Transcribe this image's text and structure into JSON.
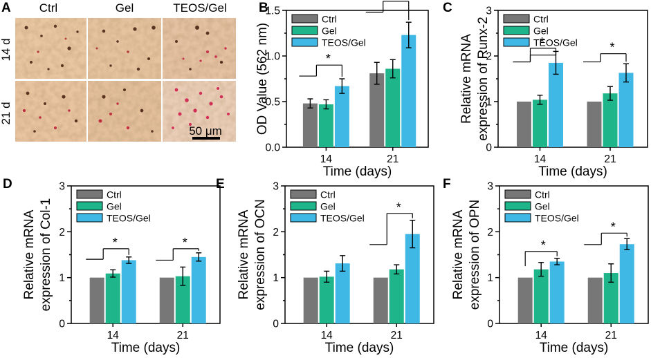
{
  "colors": {
    "Ctrl": "#777777",
    "Gel": "#1fb58b",
    "TEOS/Gel": "#3fb8e6"
  },
  "micrograph": {
    "panel_label": "A",
    "columns": [
      "Ctrl",
      "Gel",
      "TEOS/Gel"
    ],
    "rows": [
      "14 d",
      "21 d"
    ],
    "scale_bar": "50 μm"
  },
  "chart_data": [
    {
      "panel": "B",
      "type": "bar",
      "title": "",
      "categories": [
        "14",
        "21"
      ],
      "xlabel": "Time (days)",
      "ylabel": [
        "OD Value (562 nm)"
      ],
      "ylim": [
        0,
        1.5
      ],
      "yticks": [
        "0.0",
        "0.5",
        "1.0",
        "1.5"
      ],
      "minor_ticks": [
        0.25,
        0.75,
        1.25
      ],
      "series": [
        {
          "name": "Ctrl",
          "values": [
            0.48,
            0.81
          ],
          "errors": [
            0.05,
            0.12
          ]
        },
        {
          "name": "Gel",
          "values": [
            0.47,
            0.86
          ],
          "errors": [
            0.05,
            0.1
          ]
        },
        {
          "name": "TEOS/Gel",
          "values": [
            0.67,
            1.23
          ],
          "errors": [
            0.08,
            0.14
          ]
        }
      ],
      "legend": "top-left",
      "annotations": [
        {
          "type": "significance",
          "group": 0,
          "label": "*",
          "brackets": [
            {
              "y": 0.9,
              "leftLevel": 0.78
            }
          ],
          "centerLine": true
        },
        {
          "type": "significance",
          "group": 1,
          "label": "*",
          "brackets": [
            {
              "y": 1.6,
              "leftLevel": 1.48
            }
          ],
          "centerLine": true
        }
      ]
    },
    {
      "panel": "C",
      "type": "bar",
      "title": "",
      "categories": [
        "14",
        "21"
      ],
      "xlabel": "Time (days)",
      "ylabel": [
        "Relative mRNA",
        "expression of Runx-2"
      ],
      "ylim": [
        0,
        3
      ],
      "yticks": [
        "0",
        "1",
        "2",
        "3"
      ],
      "minor_ticks": [
        0.5,
        1.5,
        2.5
      ],
      "series": [
        {
          "name": "Ctrl",
          "values": [
            1.0,
            1.0
          ],
          "errors": [
            0,
            0
          ]
        },
        {
          "name": "Gel",
          "values": [
            1.04,
            1.18
          ],
          "errors": [
            0.1,
            0.15
          ]
        },
        {
          "name": "TEOS/Gel",
          "values": [
            1.85,
            1.63
          ],
          "errors": [
            0.25,
            0.2
          ]
        }
      ],
      "legend": "top-left",
      "annotations": [
        {
          "type": "significance",
          "group": 0,
          "label": "*",
          "brackets": [
            {
              "y": 2.17,
              "leftLevel": 1.87
            },
            {
              "y": 2.02,
              "leftLevel": 1.87
            }
          ],
          "centerLine": true
        },
        {
          "type": "significance",
          "group": 1,
          "label": "*",
          "brackets": [
            {
              "y": 2.05,
              "leftLevel": 1.87
            }
          ],
          "centerLine": true
        }
      ]
    },
    {
      "panel": "D",
      "type": "bar",
      "title": "",
      "categories": [
        "14",
        "21"
      ],
      "xlabel": "Time (days)",
      "ylabel": [
        "Relative mRNA",
        "expression of Col-1"
      ],
      "ylim": [
        0,
        3
      ],
      "yticks": [
        "0",
        "1",
        "2",
        "3"
      ],
      "minor_ticks": [
        0.5,
        1.5,
        2.5
      ],
      "series": [
        {
          "name": "Ctrl",
          "values": [
            1.0,
            1.0
          ],
          "errors": [
            0,
            0
          ]
        },
        {
          "name": "Gel",
          "values": [
            1.09,
            1.03
          ],
          "errors": [
            0.08,
            0.2
          ]
        },
        {
          "name": "TEOS/Gel",
          "values": [
            1.38,
            1.45
          ],
          "errors": [
            0.07,
            0.09
          ]
        }
      ],
      "legend": "top-left",
      "annotations": [
        {
          "type": "significance",
          "group": 0,
          "label": "*",
          "brackets": [
            {
              "y": 1.63,
              "leftLevel": 1.4
            }
          ],
          "centerLine": true
        },
        {
          "type": "significance",
          "group": 1,
          "label": "*",
          "brackets": [
            {
              "y": 1.63,
              "leftLevel": 1.38
            }
          ],
          "centerLine": true
        }
      ]
    },
    {
      "panel": "E",
      "type": "bar",
      "title": "",
      "categories": [
        "14",
        "21"
      ],
      "xlabel": "Time (days)",
      "ylabel": [
        "Relative mRNA",
        "expression of OCN"
      ],
      "ylim": [
        0,
        3
      ],
      "yticks": [
        "0",
        "1",
        "2",
        "3"
      ],
      "minor_ticks": [
        0.5,
        1.5,
        2.5
      ],
      "series": [
        {
          "name": "Ctrl",
          "values": [
            1.0,
            1.0
          ],
          "errors": [
            0,
            0
          ]
        },
        {
          "name": "Gel",
          "values": [
            1.02,
            1.18
          ],
          "errors": [
            0.12,
            0.1
          ]
        },
        {
          "name": "TEOS/Gel",
          "values": [
            1.31,
            1.95
          ],
          "errors": [
            0.17,
            0.3
          ]
        }
      ],
      "legend": "top-left",
      "annotations": [
        {
          "type": "significance",
          "group": 1,
          "label": "*",
          "brackets": [
            {
              "y": 2.4,
              "leftLevel": 1.72
            }
          ],
          "centerLine": true
        }
      ]
    },
    {
      "panel": "F",
      "type": "bar",
      "title": "",
      "categories": [
        "14",
        "21"
      ],
      "xlabel": "Time (days)",
      "ylabel": [
        "Relative mRNA",
        "expression of OPN"
      ],
      "ylim": [
        0,
        3
      ],
      "yticks": [
        "0",
        "1",
        "2",
        "3"
      ],
      "minor_ticks": [
        0.5,
        1.5,
        2.5
      ],
      "series": [
        {
          "name": "Ctrl",
          "values": [
            1.0,
            1.0
          ],
          "errors": [
            0,
            0
          ]
        },
        {
          "name": "Gel",
          "values": [
            1.18,
            1.1
          ],
          "errors": [
            0.15,
            0.2
          ]
        },
        {
          "name": "TEOS/Gel",
          "values": [
            1.35,
            1.73
          ],
          "errors": [
            0.07,
            0.12
          ]
        }
      ],
      "legend": "top-left",
      "annotations": [
        {
          "type": "significance",
          "group": 0,
          "label": "*",
          "brackets": [
            {
              "y": 1.57,
              "leftLevel": 1.25
            }
          ],
          "centerLine": false
        },
        {
          "type": "significance",
          "group": 1,
          "label": "*",
          "brackets": [
            {
              "y": 1.97,
              "leftLevel": 1.72
            }
          ],
          "centerLine": true
        }
      ]
    }
  ]
}
